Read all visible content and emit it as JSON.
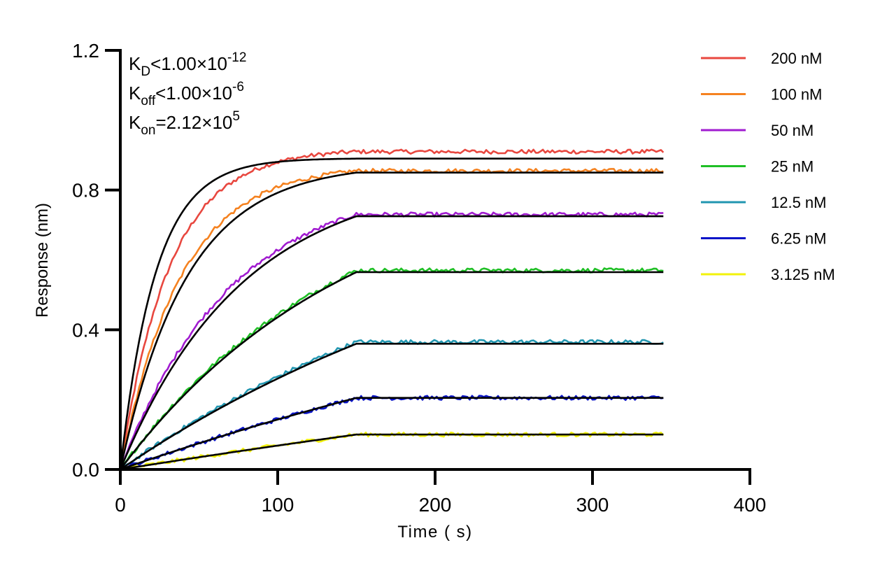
{
  "chart_data": {
    "type": "line",
    "xlabel": "Time ( s)",
    "ylabel": "Response (nm)",
    "xlim": [
      0,
      400
    ],
    "ylim": [
      0,
      1.2
    ],
    "x_ticks": [
      "0",
      "100",
      "200",
      "300",
      "400"
    ],
    "y_ticks": [
      "0.0",
      "0.4",
      "0.8",
      "1.2"
    ],
    "x_tick_values": [
      0,
      100,
      200,
      300,
      400
    ],
    "y_tick_values": [
      0,
      0.4,
      0.8,
      1.2
    ],
    "grid": false,
    "legend_position": "top-right",
    "association_end": 150,
    "run_end": 345,
    "annotations": [
      {
        "base": "K",
        "sub": "D",
        "text": "<1.00×10",
        "sup": "-12"
      },
      {
        "base": "K",
        "sub": "off",
        "text": "<1.00×10",
        "sup": "-6"
      },
      {
        "base": "K",
        "sub": "on",
        "text": "=2.12×10",
        "sup": "5"
      }
    ],
    "series": [
      {
        "name": "200 nM",
        "color": "#e8473f",
        "plateau": 0.89,
        "k": 0.0445,
        "data_plateau": 0.91,
        "data_k": 0.032
      },
      {
        "name": "100 nM",
        "color": "#f58220",
        "plateau": 0.85,
        "k": 0.0235,
        "data_plateau": 0.855,
        "data_k": 0.026
      },
      {
        "name": "50 nM",
        "color": "#a11cd0",
        "plateau": 0.725,
        "k": 0.0128,
        "data_plateau": 0.73,
        "data_k": 0.0142
      },
      {
        "name": "25 nM",
        "color": "#1fbf25",
        "plateau": 0.565,
        "k": 0.0068,
        "data_plateau": 0.57,
        "data_k": 0.0072
      },
      {
        "name": "12.5 nM",
        "color": "#2196b0",
        "plateau": 0.36,
        "k": 0.0035,
        "data_plateau": 0.365,
        "data_k": 0.0038
      },
      {
        "name": "6.25 nM",
        "color": "#0a14c8",
        "plateau": 0.205,
        "k": 0.0019,
        "data_plateau": 0.205,
        "data_k": 0.002
      },
      {
        "name": "3.125 nM",
        "color": "#f2f20a",
        "plateau": 0.1,
        "k": 0.001,
        "data_plateau": 0.1,
        "data_k": 0.001
      }
    ],
    "fit_color": "#000000"
  }
}
